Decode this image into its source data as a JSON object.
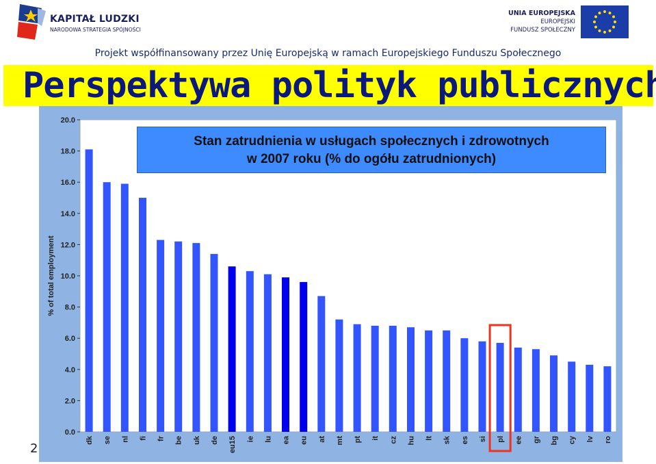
{
  "header": {
    "left_logo_title": "KAPITAŁ LUDZKI",
    "left_logo_subtitle": "NARODOWA STRATEGIA SPÓJNOŚCI",
    "right_logo_line1": "UNIA EUROPEJSKA",
    "right_logo_line2": "EUROPEJSKI",
    "right_logo_line3": "FUNDUSZ SPOŁECZNY",
    "project_line": "Projekt współfinansowany przez Unię Europejską w ramach  Europejskiego Funduszu Społecznego"
  },
  "title": "Perspektywa polityk publicznych",
  "slide_number": "2",
  "colors": {
    "bar": "#3355ff",
    "bar_highlight": "#0000ee",
    "highlight_box": "#ee3322",
    "banner": "#ffff00",
    "panel": "#8fb3e2",
    "plot_bg": "#ffffff"
  },
  "chart_data": {
    "type": "bar",
    "title_line1": "Stan zatrudnienia w usługach społecznych i zdrowotnych",
    "title_line2": "w 2007 roku (% do ogółu zatrudnionych)",
    "ylabel": "% of total employment",
    "xlabel": "",
    "ylim": [
      0,
      20
    ],
    "yticks": [
      "0.0",
      "2.0",
      "4.0",
      "6.0",
      "8.0",
      "10.0",
      "12.0",
      "14.0",
      "16.0",
      "18.0",
      "20.0"
    ],
    "grid": false,
    "categories": [
      "dk",
      "se",
      "nl",
      "fi",
      "fr",
      "be",
      "uk",
      "de",
      "eu15",
      "ie",
      "lu",
      "ea",
      "eu",
      "at",
      "mt",
      "pt",
      "it",
      "cz",
      "hu",
      "lt",
      "sk",
      "es",
      "si",
      "pl",
      "ee",
      "gr",
      "bg",
      "cy",
      "lv",
      "ro"
    ],
    "values": [
      18.1,
      16.0,
      15.9,
      15.0,
      12.3,
      12.2,
      12.1,
      11.4,
      10.6,
      10.3,
      10.1,
      9.9,
      9.6,
      8.7,
      7.2,
      6.9,
      6.8,
      6.8,
      6.7,
      6.5,
      6.5,
      6.0,
      5.8,
      5.7,
      5.4,
      5.3,
      4.9,
      4.5,
      4.3,
      4.2
    ],
    "highlighted_aggregates": [
      "eu15",
      "ea",
      "eu"
    ],
    "boxed_category": "pl"
  }
}
